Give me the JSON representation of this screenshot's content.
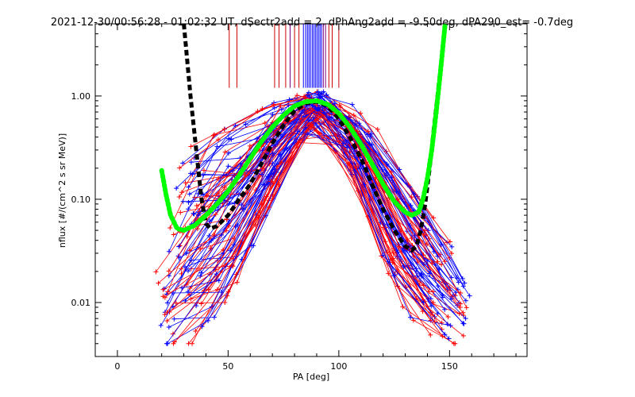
{
  "chart_data": {
    "type": "line",
    "title": "2021-12-30/00:56:28 - 01:02:32 UT, dSectr2add = 2, dPhAng2add = -9.50deg, dPA290_est=  -0.7deg",
    "xlabel": "PA [deg]",
    "ylabel": "nflux [#/(cm^2 s sr MeV)]",
    "xlim": [
      -10,
      185
    ],
    "ylim": [
      0.003,
      5.0
    ],
    "y_scale": "log",
    "x_ticks": [
      0,
      50,
      100,
      150
    ],
    "x_tick_labels": [
      "0",
      "50",
      "100",
      "150"
    ],
    "y_ticks": [
      0.01,
      0.1,
      1.0
    ],
    "y_tick_labels": [
      "0.01",
      "0.10",
      "1.00"
    ],
    "grid": false,
    "colors": {
      "red_series": "#ff0000",
      "blue_series": "#0000ff",
      "black_fit": "#000000",
      "green_fit": "#00ff00",
      "vline_red": "#cc0000",
      "vline_blue": "#0000ff",
      "vline_purple": "#800080"
    },
    "series": [
      {
        "color": "black",
        "style": "thick-dashed",
        "x": [
          30,
          33,
          36,
          38,
          40,
          42,
          45,
          50,
          55,
          60,
          65,
          70,
          75,
          80,
          85,
          90,
          95,
          100,
          105,
          110,
          115,
          120,
          125,
          130,
          133,
          135,
          137,
          139,
          141,
          143,
          145,
          147,
          148
        ],
        "y": [
          5.0,
          1.0,
          0.25,
          0.1,
          0.058,
          0.052,
          0.055,
          0.07,
          0.1,
          0.14,
          0.22,
          0.35,
          0.52,
          0.72,
          0.85,
          0.88,
          0.8,
          0.6,
          0.4,
          0.25,
          0.14,
          0.08,
          0.05,
          0.035,
          0.032,
          0.035,
          0.05,
          0.09,
          0.2,
          0.5,
          1.2,
          3.0,
          5.0
        ]
      },
      {
        "color": "green",
        "style": "thick-dotted",
        "x": [
          20,
          22,
          24,
          27,
          30,
          35,
          40,
          45,
          50,
          55,
          60,
          65,
          70,
          75,
          80,
          85,
          90,
          95,
          100,
          105,
          110,
          115,
          120,
          125,
          130,
          133,
          136,
          138,
          140,
          142,
          144,
          146,
          148
        ],
        "y": [
          0.19,
          0.11,
          0.07,
          0.052,
          0.05,
          0.056,
          0.07,
          0.09,
          0.12,
          0.17,
          0.25,
          0.36,
          0.5,
          0.65,
          0.8,
          0.88,
          0.9,
          0.83,
          0.68,
          0.5,
          0.34,
          0.22,
          0.14,
          0.095,
          0.075,
          0.07,
          0.075,
          0.1,
          0.16,
          0.3,
          0.7,
          1.8,
          5.0
        ]
      }
    ],
    "vertical_lines": [
      {
        "x": 50.5,
        "color": "red"
      },
      {
        "x": 54,
        "color": "red"
      },
      {
        "x": 71,
        "color": "red"
      },
      {
        "x": 73,
        "color": "red"
      },
      {
        "x": 76,
        "color": "red"
      },
      {
        "x": 78,
        "color": "purple"
      },
      {
        "x": 80,
        "color": "red"
      },
      {
        "x": 82,
        "color": "red"
      },
      {
        "x": 84,
        "color": "blue"
      },
      {
        "x": 85,
        "color": "blue"
      },
      {
        "x": 85.8,
        "color": "blue"
      },
      {
        "x": 86.5,
        "color": "blue"
      },
      {
        "x": 87.2,
        "color": "blue"
      },
      {
        "x": 88,
        "color": "blue"
      },
      {
        "x": 88.7,
        "color": "blue"
      },
      {
        "x": 89.4,
        "color": "blue"
      },
      {
        "x": 90.1,
        "color": "blue"
      },
      {
        "x": 90.8,
        "color": "blue"
      },
      {
        "x": 91.5,
        "color": "blue"
      },
      {
        "x": 92.2,
        "color": "blue"
      },
      {
        "x": 93,
        "color": "purple"
      },
      {
        "x": 94,
        "color": "purple"
      },
      {
        "x": 95.5,
        "color": "red"
      },
      {
        "x": 97,
        "color": "red"
      },
      {
        "x": 100,
        "color": "red"
      }
    ],
    "scatter_envelope": [
      {
        "x": 22,
        "y_low": 0.004,
        "y_high": 0.03
      },
      {
        "x": 28,
        "y_low": 0.004,
        "y_high": 0.2
      },
      {
        "x": 34,
        "y_low": 0.004,
        "y_high": 0.35
      },
      {
        "x": 42,
        "y_low": 0.005,
        "y_high": 0.4
      },
      {
        "x": 50,
        "y_low": 0.01,
        "y_high": 0.5
      },
      {
        "x": 60,
        "y_low": 0.03,
        "y_high": 0.65
      },
      {
        "x": 70,
        "y_low": 0.1,
        "y_high": 0.85
      },
      {
        "x": 80,
        "y_low": 0.3,
        "y_high": 1.0
      },
      {
        "x": 88,
        "y_low": 0.55,
        "y_high": 1.1
      },
      {
        "x": 95,
        "y_low": 0.55,
        "y_high": 1.1
      },
      {
        "x": 103,
        "y_low": 0.25,
        "y_high": 0.9
      },
      {
        "x": 112,
        "y_low": 0.08,
        "y_high": 0.7
      },
      {
        "x": 120,
        "y_low": 0.025,
        "y_high": 0.4
      },
      {
        "x": 130,
        "y_low": 0.008,
        "y_high": 0.15
      },
      {
        "x": 140,
        "y_low": 0.005,
        "y_high": 0.08
      },
      {
        "x": 150,
        "y_low": 0.004,
        "y_high": 0.04
      },
      {
        "x": 157,
        "y_low": 0.004,
        "y_high": 0.015
      }
    ]
  }
}
